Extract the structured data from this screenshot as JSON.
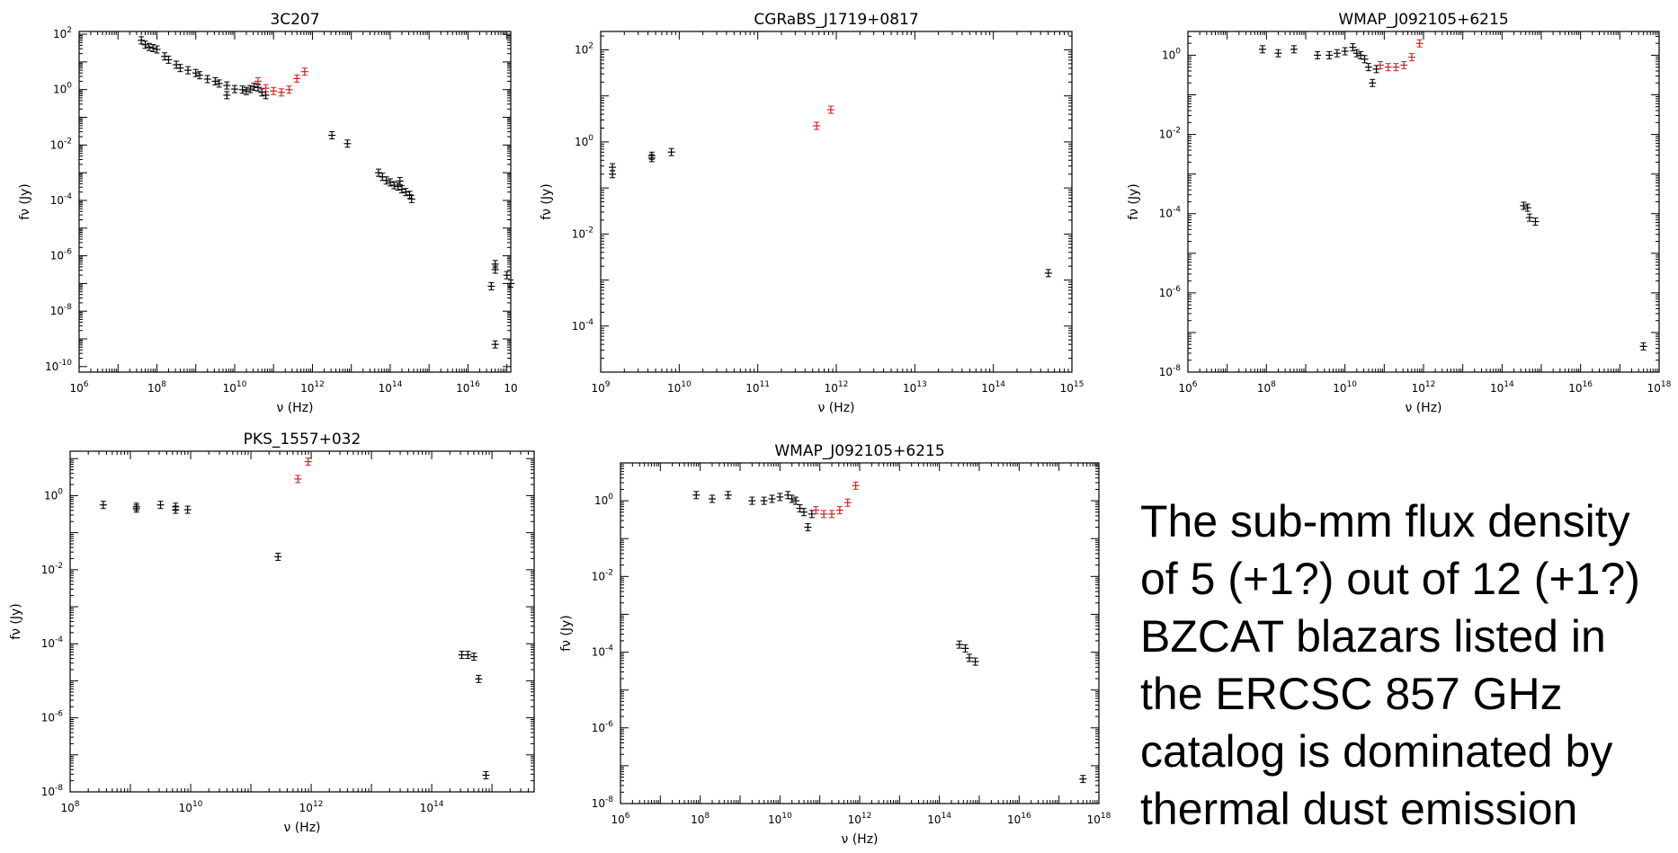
{
  "caption": "The sub-mm flux density of 5 (+1?) out of 12 (+1?) BZCAT blazars listed in the ERCSC 857 GHz catalog is dominated by thermal dust emission",
  "chart_data": [
    {
      "type": "scatter",
      "title": "3C207",
      "xlabel": "ν (Hz)",
      "ylabel": "fν (Jy)",
      "x_log": true,
      "y_log": true,
      "xlim_log10": [
        6,
        17.1
      ],
      "ylim_log10": [
        -10.2,
        2.1
      ],
      "xticks_log10": [
        6,
        8,
        10,
        12,
        14,
        16
      ],
      "xtick_extra_label": "10",
      "yticks_log10": [
        -10,
        -8,
        -6,
        -4,
        -2,
        0,
        2
      ],
      "series": [
        {
          "color": "#000000",
          "points": [
            [
              7.6,
              1.78
            ],
            [
              7.7,
              1.62
            ],
            [
              7.8,
              1.54
            ],
            [
              7.9,
              1.5
            ],
            [
              8.0,
              1.45
            ],
            [
              8.2,
              1.2
            ],
            [
              8.3,
              1.08
            ],
            [
              8.5,
              0.9
            ],
            [
              8.6,
              0.78
            ],
            [
              8.8,
              0.7
            ],
            [
              9.0,
              0.6
            ],
            [
              9.1,
              0.52
            ],
            [
              9.3,
              0.38
            ],
            [
              9.5,
              0.3
            ],
            [
              9.6,
              0.22
            ],
            [
              9.8,
              0.15
            ],
            [
              9.8,
              -0.2
            ],
            [
              10.0,
              0.02
            ],
            [
              10.2,
              0.0
            ],
            [
              10.3,
              -0.05
            ],
            [
              10.4,
              0.02
            ],
            [
              10.5,
              0.1
            ],
            [
              10.6,
              0.08
            ],
            [
              10.7,
              -0.1
            ],
            [
              10.8,
              -0.2
            ],
            [
              12.5,
              -1.65
            ],
            [
              12.9,
              -1.95
            ],
            [
              13.7,
              -3.0
            ],
            [
              13.8,
              -3.15
            ],
            [
              13.9,
              -3.28
            ],
            [
              14.0,
              -3.35
            ],
            [
              14.1,
              -3.45
            ],
            [
              14.2,
              -3.5
            ],
            [
              14.25,
              -3.3
            ],
            [
              14.3,
              -3.6
            ],
            [
              14.4,
              -3.7
            ],
            [
              14.5,
              -3.8
            ],
            [
              14.55,
              -3.95
            ],
            [
              16.6,
              -7.1
            ],
            [
              16.7,
              -6.3
            ],
            [
              16.7,
              -6.5
            ],
            [
              16.7,
              -9.2
            ],
            [
              17.0,
              -6.7
            ],
            [
              17.1,
              -7.0
            ]
          ]
        },
        {
          "color": "#d22020",
          "points": [
            [
              10.6,
              0.3
            ],
            [
              10.8,
              0.05
            ],
            [
              11.0,
              -0.05
            ],
            [
              11.2,
              -0.1
            ],
            [
              11.4,
              0.0
            ],
            [
              11.6,
              0.4
            ],
            [
              11.8,
              0.65
            ]
          ]
        }
      ]
    },
    {
      "type": "scatter",
      "title": "CGRaBS_J1719+0817",
      "xlabel": "ν (Hz)",
      "ylabel": "fν (Jy)",
      "x_log": true,
      "y_log": true,
      "xlim_log10": [
        9,
        15
      ],
      "ylim_log10": [
        -5,
        2.4
      ],
      "xticks_log10": [
        9,
        10,
        11,
        12,
        13,
        14,
        15
      ],
      "yticks_log10": [
        -4,
        -2,
        0,
        2
      ],
      "series": [
        {
          "color": "#000000",
          "points": [
            [
              9.15,
              -0.55
            ],
            [
              9.15,
              -0.7
            ],
            [
              9.65,
              -0.3
            ],
            [
              9.65,
              -0.35
            ],
            [
              9.9,
              -0.22
            ],
            [
              14.7,
              -2.85
            ]
          ]
        },
        {
          "color": "#d22020",
          "points": [
            [
              11.75,
              0.35
            ],
            [
              11.93,
              0.7
            ]
          ]
        }
      ]
    },
    {
      "type": "scatter",
      "title": "WMAP_J092105+6215",
      "xlabel": "ν (Hz)",
      "ylabel": "fν (Jy)",
      "x_log": true,
      "y_log": true,
      "xlim_log10": [
        6,
        18
      ],
      "ylim_log10": [
        -8,
        0.6
      ],
      "xticks_log10": [
        6,
        8,
        10,
        12,
        14,
        16,
        18
      ],
      "yticks_log10": [
        -8,
        -6,
        -4,
        -2,
        0
      ],
      "series": [
        {
          "color": "#000000",
          "points": [
            [
              7.9,
              0.15
            ],
            [
              8.3,
              0.05
            ],
            [
              8.7,
              0.15
            ],
            [
              9.3,
              0.0
            ],
            [
              9.6,
              0.0
            ],
            [
              9.8,
              0.05
            ],
            [
              10.0,
              0.1
            ],
            [
              10.2,
              0.2
            ],
            [
              10.3,
              0.05
            ],
            [
              10.4,
              0.0
            ],
            [
              10.5,
              -0.1
            ],
            [
              10.6,
              -0.3
            ],
            [
              10.7,
              -0.7
            ],
            [
              10.8,
              -0.35
            ],
            [
              14.55,
              -3.8
            ],
            [
              14.65,
              -3.85
            ],
            [
              14.7,
              -4.1
            ],
            [
              14.85,
              -4.2
            ],
            [
              17.6,
              -7.35
            ]
          ]
        },
        {
          "color": "#d22020",
          "points": [
            [
              10.9,
              -0.25
            ],
            [
              11.1,
              -0.3
            ],
            [
              11.3,
              -0.3
            ],
            [
              11.5,
              -0.25
            ],
            [
              11.7,
              -0.05
            ],
            [
              11.9,
              0.3
            ]
          ]
        }
      ]
    },
    {
      "type": "scatter",
      "title": "PKS_1557+032",
      "xlabel": "ν (Hz)",
      "ylabel": "fν (Jy)",
      "x_log": true,
      "y_log": true,
      "xlim_log10": [
        8,
        15.7
      ],
      "ylim_log10": [
        -8,
        1.2
      ],
      "xticks_log10": [
        8,
        10,
        12,
        14
      ],
      "yticks_log10": [
        -8,
        -6,
        -4,
        -2,
        0
      ],
      "series": [
        {
          "color": "#000000",
          "points": [
            [
              8.55,
              -0.25
            ],
            [
              9.1,
              -0.3
            ],
            [
              9.1,
              -0.35
            ],
            [
              9.5,
              -0.25
            ],
            [
              9.75,
              -0.3
            ],
            [
              9.75,
              -0.38
            ],
            [
              9.95,
              -0.38
            ],
            [
              11.45,
              -1.65
            ],
            [
              14.5,
              -4.3
            ],
            [
              14.6,
              -4.3
            ],
            [
              14.7,
              -4.35
            ],
            [
              14.78,
              -4.95
            ],
            [
              14.9,
              -7.55
            ]
          ]
        },
        {
          "color": "#d22020",
          "points": [
            [
              11.78,
              0.45
            ],
            [
              11.95,
              0.92
            ]
          ]
        }
      ]
    },
    {
      "type": "scatter",
      "title": "WMAP_J092105+6215",
      "xlabel": "ν (Hz)",
      "ylabel": "fν (Jy)",
      "x_log": true,
      "y_log": true,
      "xlim_log10": [
        6,
        18
      ],
      "ylim_log10": [
        -8,
        1
      ],
      "xticks_log10": [
        6,
        8,
        10,
        12,
        14,
        16,
        18
      ],
      "yticks_log10": [
        -8,
        -6,
        -4,
        -2,
        0
      ],
      "series": [
        {
          "color": "#000000",
          "points": [
            [
              7.9,
              0.15
            ],
            [
              8.3,
              0.05
            ],
            [
              8.7,
              0.15
            ],
            [
              9.3,
              0.0
            ],
            [
              9.6,
              0.0
            ],
            [
              9.8,
              0.05
            ],
            [
              10.0,
              0.1
            ],
            [
              10.2,
              0.15
            ],
            [
              10.3,
              0.05
            ],
            [
              10.4,
              0.0
            ],
            [
              10.5,
              -0.2
            ],
            [
              10.6,
              -0.3
            ],
            [
              10.7,
              -0.7
            ],
            [
              10.8,
              -0.35
            ],
            [
              14.5,
              -3.8
            ],
            [
              14.65,
              -3.9
            ],
            [
              14.75,
              -4.15
            ],
            [
              14.9,
              -4.25
            ],
            [
              17.6,
              -7.35
            ]
          ]
        },
        {
          "color": "#d22020",
          "points": [
            [
              10.9,
              -0.25
            ],
            [
              11.1,
              -0.35
            ],
            [
              11.3,
              -0.35
            ],
            [
              11.5,
              -0.25
            ],
            [
              11.7,
              -0.05
            ],
            [
              11.9,
              0.4
            ]
          ]
        }
      ]
    }
  ]
}
